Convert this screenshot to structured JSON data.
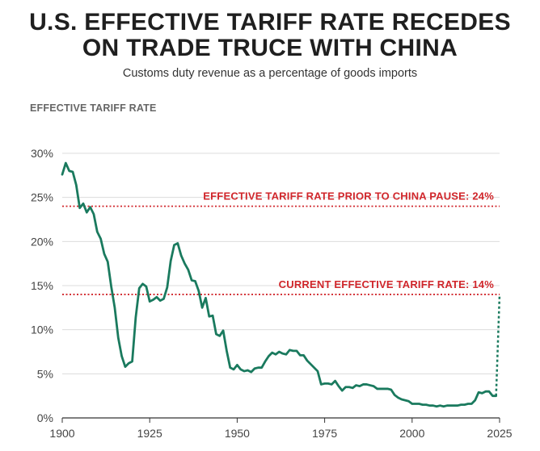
{
  "title_line1": "U.S. EFFECTIVE TARIFF RATE RECEDES",
  "title_line2": "ON TRADE TRUCE WITH CHINA",
  "subtitle": "Customs duty revenue as a percentage of goods imports",
  "chart_data": {
    "type": "line",
    "ylabel": "EFFECTIVE TARIFF RATE",
    "xlim": [
      1900,
      2025
    ],
    "ylim": [
      0,
      30
    ],
    "x_ticks": [
      1900,
      1925,
      1950,
      1975,
      2000,
      2025
    ],
    "y_ticks": [
      {
        "value": 0,
        "label": "0%"
      },
      {
        "value": 5,
        "label": "5%"
      },
      {
        "value": 10,
        "label": "10%"
      },
      {
        "value": 15,
        "label": "15%"
      },
      {
        "value": 20,
        "label": "20%"
      },
      {
        "value": 25,
        "label": "25%"
      },
      {
        "value": 30,
        "label": "30%"
      }
    ],
    "grid": "horizontal",
    "line_color": "#1a7a5e",
    "annotation_color": "#d0262b",
    "reference_lines": [
      {
        "value": 24,
        "label": "EFFECTIVE TARIFF RATE PRIOR TO CHINA PAUSE: 24%"
      },
      {
        "value": 14,
        "label": "CURRENT EFFECTIVE TARIFF RATE: 14%"
      }
    ],
    "series": [
      {
        "x": [
          1900,
          1901,
          1902,
          1903,
          1904,
          1905,
          1906,
          1907,
          1908,
          1909,
          1910,
          1911,
          1912,
          1913,
          1914,
          1915,
          1916,
          1917,
          1918,
          1919,
          1920,
          1921,
          1922,
          1923,
          1924,
          1925,
          1926,
          1927,
          1928,
          1929,
          1930,
          1931,
          1932,
          1933,
          1934,
          1935,
          1936,
          1937,
          1938,
          1939,
          1940,
          1941,
          1942,
          1943,
          1944,
          1945,
          1946,
          1947,
          1948,
          1949,
          1950,
          1951,
          1952,
          1953,
          1954,
          1955,
          1956,
          1957,
          1958,
          1959,
          1960,
          1961,
          1962,
          1963,
          1964,
          1965,
          1966,
          1967,
          1968,
          1969,
          1970,
          1971,
          1972,
          1973,
          1974,
          1975,
          1976,
          1977,
          1978,
          1979,
          1980,
          1981,
          1982,
          1983,
          1984,
          1985,
          1986,
          1987,
          1988,
          1989,
          1990,
          1991,
          1992,
          1993,
          1994,
          1995,
          1996,
          1997,
          1998,
          1999,
          2000,
          2001,
          2002,
          2003,
          2004,
          2005,
          2006,
          2007,
          2008,
          2009,
          2010,
          2011,
          2012,
          2013,
          2014,
          2015,
          2016,
          2017,
          2018,
          2019,
          2020,
          2021,
          2022,
          2023,
          2024
        ],
        "values": [
          27.6,
          28.9,
          28.0,
          27.9,
          26.4,
          23.8,
          24.3,
          23.3,
          23.9,
          23.1,
          21.1,
          20.3,
          18.6,
          17.7,
          14.9,
          12.5,
          9.1,
          7.0,
          5.8,
          6.2,
          6.4,
          11.4,
          14.7,
          15.2,
          14.9,
          13.2,
          13.4,
          13.7,
          13.3,
          13.5,
          14.8,
          17.8,
          19.6,
          19.8,
          18.4,
          17.5,
          16.8,
          15.6,
          15.5,
          14.4,
          12.5,
          13.6,
          11.5,
          11.6,
          9.5,
          9.3,
          9.9,
          7.6,
          5.7,
          5.5,
          6.0,
          5.5,
          5.3,
          5.4,
          5.2,
          5.6,
          5.7,
          5.7,
          6.4,
          7.0,
          7.4,
          7.2,
          7.5,
          7.3,
          7.2,
          7.7,
          7.6,
          7.6,
          7.1,
          7.1,
          6.5,
          6.1,
          5.7,
          5.3,
          3.8,
          3.9,
          3.9,
          3.8,
          4.2,
          3.6,
          3.1,
          3.5,
          3.5,
          3.4,
          3.7,
          3.6,
          3.8,
          3.8,
          3.7,
          3.6,
          3.3,
          3.3,
          3.3,
          3.3,
          3.2,
          2.6,
          2.3,
          2.1,
          2.0,
          1.9,
          1.6,
          1.6,
          1.6,
          1.5,
          1.5,
          1.4,
          1.4,
          1.3,
          1.4,
          1.3,
          1.4,
          1.4,
          1.4,
          1.4,
          1.5,
          1.5,
          1.6,
          1.6,
          2.0,
          2.9,
          2.8,
          3.0,
          3.0,
          2.5,
          2.5
        ]
      }
    ],
    "projection": {
      "x": [
        2024,
        2025
      ],
      "values": [
        2.5,
        14
      ]
    }
  }
}
